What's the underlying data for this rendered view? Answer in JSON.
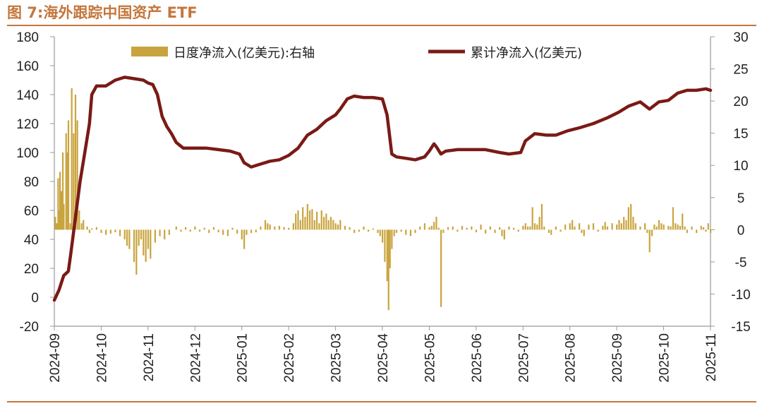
{
  "figure_title": "图 7:海外跟踪中国资产 ETF",
  "colors": {
    "title": "#C4773D",
    "bars": "#C9A43E",
    "line": "#7A1A16",
    "axis": "#999999"
  },
  "chart_data": {
    "type": "bar+line",
    "title": "",
    "x_tick_labels": [
      "2024-09",
      "2024-10",
      "2024-11",
      "2024-12",
      "2025-01",
      "2025-02",
      "2025-03",
      "2025-04",
      "2025-05",
      "2025-06",
      "2025-07",
      "2025-08",
      "2025-09",
      "2025-10",
      "2025-11"
    ],
    "x_range": [
      "2024-09",
      "2025-11"
    ],
    "y_left": {
      "min": -20,
      "max": 180,
      "step": 20,
      "ticks": [
        "180",
        "160",
        "140",
        "120",
        "100",
        "80",
        "60",
        "40",
        "20",
        "0",
        "-20"
      ]
    },
    "y_right": {
      "min": -15,
      "max": 30,
      "step": 5,
      "ticks": [
        "30",
        "25",
        "20",
        "15",
        "10",
        "5",
        "0",
        "-5",
        "-10",
        "-15"
      ]
    },
    "legend": {
      "position": "top",
      "bar_label": "日度净流入(亿美元):右轴",
      "line_label": "累计净流入(亿美元)"
    },
    "series": [
      {
        "name": "累计净流入(亿美元)",
        "kind": "line",
        "axis": "left",
        "points": [
          [
            0.0,
            -2
          ],
          [
            0.1,
            5
          ],
          [
            0.2,
            15
          ],
          [
            0.3,
            18
          ],
          [
            0.35,
            30
          ],
          [
            0.45,
            55
          ],
          [
            0.55,
            80
          ],
          [
            0.65,
            100
          ],
          [
            0.75,
            120
          ],
          [
            0.8,
            140
          ],
          [
            0.9,
            146
          ],
          [
            1.1,
            146
          ],
          [
            1.3,
            150
          ],
          [
            1.5,
            152
          ],
          [
            1.7,
            151
          ],
          [
            1.9,
            150
          ],
          [
            2.0,
            148
          ],
          [
            2.1,
            147
          ],
          [
            2.2,
            140
          ],
          [
            2.3,
            125
          ],
          [
            2.4,
            118
          ],
          [
            2.5,
            113
          ],
          [
            2.6,
            107
          ],
          [
            2.75,
            103
          ],
          [
            3.0,
            103
          ],
          [
            3.25,
            103
          ],
          [
            3.5,
            102
          ],
          [
            3.75,
            101
          ],
          [
            3.95,
            99
          ],
          [
            4.05,
            93
          ],
          [
            4.2,
            90
          ],
          [
            4.4,
            92
          ],
          [
            4.6,
            94
          ],
          [
            4.8,
            95
          ],
          [
            5.0,
            98
          ],
          [
            5.2,
            103
          ],
          [
            5.4,
            112
          ],
          [
            5.6,
            116
          ],
          [
            5.8,
            122
          ],
          [
            6.0,
            126
          ],
          [
            6.1,
            130
          ],
          [
            6.25,
            137
          ],
          [
            6.4,
            139
          ],
          [
            6.6,
            138
          ],
          [
            6.8,
            138
          ],
          [
            7.0,
            137
          ],
          [
            7.1,
            126
          ],
          [
            7.2,
            99
          ],
          [
            7.3,
            97
          ],
          [
            7.5,
            96
          ],
          [
            7.7,
            95
          ],
          [
            7.9,
            97
          ],
          [
            8.0,
            101
          ],
          [
            8.1,
            106
          ],
          [
            8.15,
            104
          ],
          [
            8.25,
            99
          ],
          [
            8.35,
            101
          ],
          [
            8.6,
            102
          ],
          [
            8.9,
            102
          ],
          [
            9.2,
            102
          ],
          [
            9.5,
            100
          ],
          [
            9.7,
            99
          ],
          [
            9.95,
            100
          ],
          [
            10.05,
            108
          ],
          [
            10.25,
            113
          ],
          [
            10.5,
            112
          ],
          [
            10.7,
            112
          ],
          [
            10.95,
            115
          ],
          [
            11.2,
            117
          ],
          [
            11.5,
            120
          ],
          [
            11.8,
            124
          ],
          [
            12.05,
            128
          ],
          [
            12.25,
            132
          ],
          [
            12.5,
            135
          ],
          [
            12.7,
            130
          ],
          [
            12.9,
            135
          ],
          [
            13.1,
            136
          ],
          [
            13.3,
            141
          ],
          [
            13.5,
            143
          ],
          [
            13.7,
            143
          ],
          [
            13.9,
            144
          ],
          [
            14.0,
            143
          ]
        ]
      },
      {
        "name": "日度净流入(亿美元):右轴",
        "kind": "bar",
        "axis": "right",
        "values": [
          [
            0.02,
            2
          ],
          [
            0.05,
            1
          ],
          [
            0.08,
            8
          ],
          [
            0.1,
            3
          ],
          [
            0.12,
            9
          ],
          [
            0.15,
            6
          ],
          [
            0.18,
            12
          ],
          [
            0.2,
            4
          ],
          [
            0.25,
            15
          ],
          [
            0.28,
            12
          ],
          [
            0.3,
            17
          ],
          [
            0.34,
            1
          ],
          [
            0.37,
            22
          ],
          [
            0.41,
            15
          ],
          [
            0.45,
            21
          ],
          [
            0.49,
            17
          ],
          [
            0.53,
            3
          ],
          [
            0.58,
            1
          ],
          [
            0.62,
            1.5
          ],
          [
            0.7,
            0.5
          ],
          [
            0.75,
            -0.5
          ],
          [
            0.8,
            0.2
          ],
          [
            0.9,
            0.4
          ],
          [
            1.0,
            -0.5
          ],
          [
            1.1,
            -0.8
          ],
          [
            1.2,
            -0.6
          ],
          [
            1.3,
            -0.4
          ],
          [
            1.4,
            -1.0
          ],
          [
            1.5,
            -1.5
          ],
          [
            1.55,
            -2.5
          ],
          [
            1.6,
            -3.0
          ],
          [
            1.7,
            -5.0
          ],
          [
            1.75,
            -7.0
          ],
          [
            1.8,
            -2.5
          ],
          [
            1.85,
            -1.5
          ],
          [
            1.9,
            -4.0
          ],
          [
            1.95,
            -5.0
          ],
          [
            2.0,
            -3.0
          ],
          [
            2.05,
            -4.5
          ],
          [
            2.15,
            -2.0
          ],
          [
            2.25,
            -1.0
          ],
          [
            2.35,
            -1.5
          ],
          [
            2.45,
            -0.8
          ],
          [
            2.6,
            0.5
          ],
          [
            2.7,
            -0.3
          ],
          [
            2.8,
            0.4
          ],
          [
            2.9,
            -0.3
          ],
          [
            3.0,
            0.5
          ],
          [
            3.1,
            -0.3
          ],
          [
            3.2,
            0.3
          ],
          [
            3.3,
            -0.5
          ],
          [
            3.4,
            0.4
          ],
          [
            3.5,
            -0.4
          ],
          [
            3.6,
            -0.8
          ],
          [
            3.7,
            -1.0
          ],
          [
            3.8,
            0.3
          ],
          [
            3.9,
            -0.6
          ],
          [
            4.0,
            -1.5
          ],
          [
            4.05,
            -3.0
          ],
          [
            4.1,
            -0.8
          ],
          [
            4.2,
            -0.5
          ],
          [
            4.3,
            -0.4
          ],
          [
            4.4,
            0.5
          ],
          [
            4.5,
            1.5
          ],
          [
            4.55,
            1.0
          ],
          [
            4.6,
            0.8
          ],
          [
            4.7,
            0.5
          ],
          [
            4.8,
            0.6
          ],
          [
            4.9,
            0.4
          ],
          [
            5.0,
            0.3
          ],
          [
            5.1,
            1.0
          ],
          [
            5.15,
            2.5
          ],
          [
            5.2,
            3.0
          ],
          [
            5.25,
            1.5
          ],
          [
            5.3,
            3.5
          ],
          [
            5.35,
            2.0
          ],
          [
            5.4,
            4.0
          ],
          [
            5.45,
            3.0
          ],
          [
            5.5,
            3.2
          ],
          [
            5.55,
            1.5
          ],
          [
            5.6,
            2.8
          ],
          [
            5.65,
            1.0
          ],
          [
            5.7,
            3.0
          ],
          [
            5.75,
            2.0
          ],
          [
            5.8,
            2.5
          ],
          [
            5.85,
            1.5
          ],
          [
            5.9,
            2.0
          ],
          [
            5.95,
            1.5
          ],
          [
            6.0,
            1.0
          ],
          [
            6.05,
            0.8
          ],
          [
            6.1,
            1.5
          ],
          [
            6.2,
            0.6
          ],
          [
            6.3,
            0.4
          ],
          [
            6.4,
            -0.5
          ],
          [
            6.5,
            -0.3
          ],
          [
            6.6,
            0.5
          ],
          [
            6.7,
            -0.3
          ],
          [
            6.8,
            0.2
          ],
          [
            6.9,
            -0.5
          ],
          [
            6.95,
            -1.0
          ],
          [
            7.0,
            -2.0
          ],
          [
            7.05,
            -5.0
          ],
          [
            7.1,
            -8.0
          ],
          [
            7.13,
            -12.5
          ],
          [
            7.16,
            -6.0
          ],
          [
            7.2,
            -3.0
          ],
          [
            7.25,
            -1.0
          ],
          [
            7.3,
            -0.5
          ],
          [
            7.4,
            -0.3
          ],
          [
            7.5,
            -0.8
          ],
          [
            7.6,
            -1.0
          ],
          [
            7.7,
            -0.5
          ],
          [
            7.8,
            0.5
          ],
          [
            7.9,
            1.0
          ],
          [
            8.0,
            0.4
          ],
          [
            8.05,
            0.6
          ],
          [
            8.1,
            1.2
          ],
          [
            8.15,
            2.0
          ],
          [
            8.2,
            0.3
          ],
          [
            8.25,
            -12.0
          ],
          [
            8.3,
            -0.5
          ],
          [
            8.4,
            0.4
          ],
          [
            8.5,
            0.5
          ],
          [
            8.6,
            -0.3
          ],
          [
            8.7,
            0.6
          ],
          [
            8.8,
            0.3
          ],
          [
            8.9,
            0.5
          ],
          [
            9.0,
            -0.4
          ],
          [
            9.1,
            0.8
          ],
          [
            9.2,
            -0.6
          ],
          [
            9.3,
            0.5
          ],
          [
            9.4,
            -0.5
          ],
          [
            9.5,
            0.4
          ],
          [
            9.55,
            -1.0
          ],
          [
            9.6,
            -1.5
          ],
          [
            9.7,
            0.5
          ],
          [
            9.8,
            0.3
          ],
          [
            9.9,
            -0.3
          ],
          [
            10.0,
            0.6
          ],
          [
            10.05,
            1.0
          ],
          [
            10.1,
            0.5
          ],
          [
            10.15,
            0.5
          ],
          [
            10.2,
            3.5
          ],
          [
            10.25,
            1.0
          ],
          [
            10.3,
            0.8
          ],
          [
            10.35,
            2.0
          ],
          [
            10.4,
            4.0
          ],
          [
            10.45,
            0.5
          ],
          [
            10.55,
            -0.5
          ],
          [
            10.6,
            -0.8
          ],
          [
            10.7,
            0.5
          ],
          [
            10.8,
            -0.3
          ],
          [
            10.9,
            0.8
          ],
          [
            11.0,
            1.0
          ],
          [
            11.05,
            1.5
          ],
          [
            11.1,
            0.5
          ],
          [
            11.2,
            1.0
          ],
          [
            11.25,
            -0.5
          ],
          [
            11.3,
            -1.0
          ],
          [
            11.4,
            0.8
          ],
          [
            11.5,
            1.0
          ],
          [
            11.6,
            -0.3
          ],
          [
            11.7,
            0.6
          ],
          [
            11.75,
            1.2
          ],
          [
            11.8,
            0.5
          ],
          [
            11.9,
            1.0
          ],
          [
            12.0,
            0.8
          ],
          [
            12.05,
            1.5
          ],
          [
            12.1,
            1.0
          ],
          [
            12.15,
            2.0
          ],
          [
            12.2,
            1.5
          ],
          [
            12.25,
            3.5
          ],
          [
            12.3,
            4.0
          ],
          [
            12.35,
            2.0
          ],
          [
            12.4,
            1.0
          ],
          [
            12.5,
            0.5
          ],
          [
            12.6,
            1.0
          ],
          [
            12.65,
            -0.5
          ],
          [
            12.7,
            -3.5
          ],
          [
            12.75,
            -1.0
          ],
          [
            12.8,
            0.8
          ],
          [
            12.85,
            0.5
          ],
          [
            12.9,
            1.5
          ],
          [
            12.95,
            1.0
          ],
          [
            13.0,
            0.8
          ],
          [
            13.1,
            0.6
          ],
          [
            13.15,
            0.5
          ],
          [
            13.2,
            3.5
          ],
          [
            13.25,
            1.0
          ],
          [
            13.3,
            0.8
          ],
          [
            13.35,
            0.6
          ],
          [
            13.4,
            2.5
          ],
          [
            13.45,
            0.5
          ],
          [
            13.5,
            -0.5
          ],
          [
            13.6,
            0.5
          ],
          [
            13.7,
            -0.5
          ],
          [
            13.8,
            0.6
          ],
          [
            13.85,
            0.4
          ],
          [
            13.9,
            -0.3
          ],
          [
            13.95,
            1.0
          ],
          [
            14.0,
            -0.5
          ]
        ]
      }
    ]
  }
}
